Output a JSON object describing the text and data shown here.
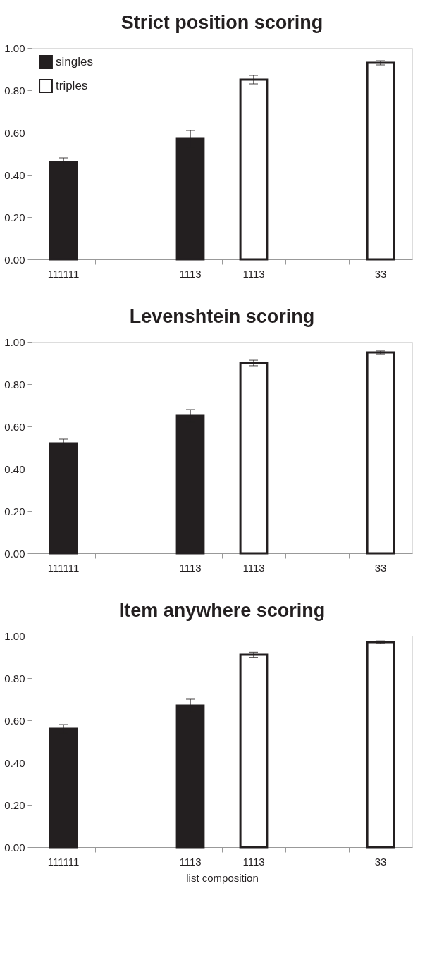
{
  "chart_data": [
    {
      "type": "bar",
      "title": "Strict position scoring",
      "categories": [
        "111111",
        null,
        "1113",
        "1113",
        null,
        "33"
      ],
      "series": [
        {
          "name": "singles",
          "color": "#231f20",
          "values": [
            0.46,
            null,
            0.57,
            null,
            null,
            null
          ],
          "errors": [
            0.02,
            null,
            0.04,
            null,
            null,
            null
          ]
        },
        {
          "name": "triples",
          "color": "#ffffff",
          "values": [
            null,
            null,
            null,
            0.85,
            null,
            0.93
          ],
          "errors": [
            null,
            null,
            null,
            0.02,
            null,
            0.01
          ]
        }
      ],
      "ylim": [
        0,
        1
      ],
      "yticks": [
        {
          "value": 0,
          "label": "0.00"
        },
        {
          "value": 0.2,
          "label": "0.20"
        },
        {
          "value": 0.4,
          "label": "0.40"
        },
        {
          "value": 0.6,
          "label": "0.60"
        },
        {
          "value": 0.8,
          "label": "0.80"
        },
        {
          "value": 1,
          "label": "1.00"
        }
      ],
      "grid": false,
      "legend": "top left"
    },
    {
      "type": "bar",
      "title": "Levenshtein scoring",
      "categories": [
        "111111",
        null,
        "1113",
        "1113",
        null,
        "33"
      ],
      "series": [
        {
          "name": "singles",
          "color": "#231f20",
          "values": [
            0.52,
            null,
            0.65,
            null,
            null,
            null
          ],
          "errors": [
            0.02,
            null,
            0.03,
            null,
            null,
            null
          ]
        },
        {
          "name": "triples",
          "color": "#ffffff",
          "values": [
            null,
            null,
            null,
            0.9,
            null,
            0.95
          ],
          "errors": [
            null,
            null,
            null,
            0.013,
            null,
            0.007
          ]
        }
      ],
      "ylim": [
        0,
        1
      ],
      "yticks": [
        {
          "value": 0,
          "label": "0.00"
        },
        {
          "value": 0.2,
          "label": "0.20"
        },
        {
          "value": 0.4,
          "label": "0.40"
        },
        {
          "value": 0.6,
          "label": "0.60"
        },
        {
          "value": 0.8,
          "label": "0.80"
        },
        {
          "value": 1,
          "label": "1.00"
        }
      ],
      "grid": false,
      "legend": false
    },
    {
      "type": "bar",
      "title": "Item anywhere scoring",
      "xlabel": "list composition",
      "categories": [
        "111111",
        null,
        "1113",
        "1113",
        null,
        "33"
      ],
      "series": [
        {
          "name": "singles",
          "color": "#231f20",
          "values": [
            0.56,
            null,
            0.67,
            null,
            null,
            null
          ],
          "errors": [
            0.02,
            null,
            0.03,
            null,
            null,
            null
          ]
        },
        {
          "name": "triples",
          "color": "#ffffff",
          "values": [
            null,
            null,
            null,
            0.91,
            null,
            0.97
          ],
          "errors": [
            null,
            null,
            null,
            0.012,
            null,
            0.006
          ]
        }
      ],
      "ylim": [
        0,
        1
      ],
      "yticks": [
        {
          "value": 0,
          "label": "0.00"
        },
        {
          "value": 0.2,
          "label": "0.20"
        },
        {
          "value": 0.4,
          "label": "0.40"
        },
        {
          "value": 0.6,
          "label": "0.60"
        },
        {
          "value": 0.8,
          "label": "0.80"
        },
        {
          "value": 1,
          "label": "1.00"
        }
      ],
      "grid": false,
      "legend": false
    }
  ]
}
